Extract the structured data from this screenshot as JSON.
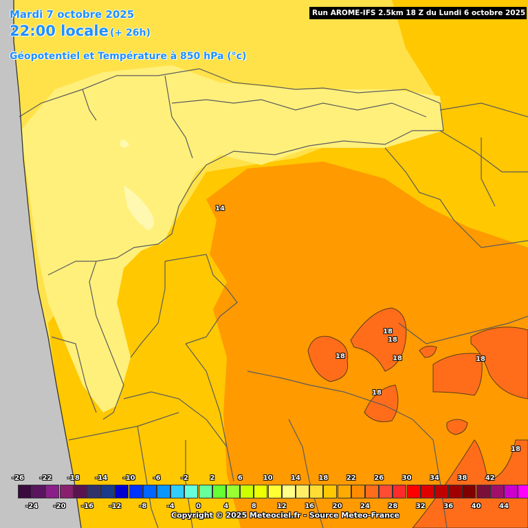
{
  "header": {
    "date": "Mardi 7 octobre 2025",
    "time": "22:00 locale",
    "lead": "(+ 26h)",
    "variable": "Géopotentiel et Température à 850 hPa (°c)",
    "run": "Run AROME-IFS 2.5km 18 Z du Lundi 6 octobre 2025"
  },
  "footer": {
    "credit": "Copyright © 2025 Meteociel.fr - Source Meteo-France"
  },
  "map": {
    "colors": {
      "sea": "#c4c4c4",
      "t12": "#fff07c",
      "t14": "#ffe24a",
      "t16": "#ffc800",
      "t18": "#ff9a00",
      "t20": "#ff6d1a",
      "border": "#5a5a5a"
    },
    "contour_labels": [
      "14",
      "18",
      "18",
      "18",
      "18",
      "18",
      "18",
      "18"
    ]
  },
  "legend": {
    "top_ticks": [
      "-26",
      "-22",
      "-18",
      "-14",
      "-10",
      "-6",
      "-2",
      "2",
      "6",
      "10",
      "14",
      "18",
      "22",
      "26",
      "30",
      "34",
      "38",
      "42"
    ],
    "bottom_ticks": [
      "-24",
      "-20",
      "-16",
      "-12",
      "-8",
      "-4",
      "0",
      "4",
      "8",
      "12",
      "16",
      "20",
      "24",
      "28",
      "32",
      "36",
      "40",
      "44"
    ],
    "colors": [
      "#3b0a3f",
      "#5a1460",
      "#8a1e8a",
      "#8a1f6e",
      "#5a1450",
      "#33336b",
      "#1a3a8a",
      "#0000d0",
      "#0033ff",
      "#0066ff",
      "#0a96ff",
      "#33ccff",
      "#66ffd9",
      "#66ff99",
      "#66ff33",
      "#99ff33",
      "#ccff00",
      "#eeff00",
      "#ffff33",
      "#ffff88",
      "#ffee66",
      "#ffdd33",
      "#ffc800",
      "#ffaa00",
      "#ff8c00",
      "#ff6d1a",
      "#ff4d33",
      "#ff2a2a",
      "#ff0000",
      "#e00000",
      "#c00000",
      "#a00000",
      "#800000",
      "#7a0f3a",
      "#a0106a",
      "#cc00cc",
      "#ff00ff",
      "#ff66ff",
      "#ff99ff",
      "#ffb3ff"
    ]
  }
}
